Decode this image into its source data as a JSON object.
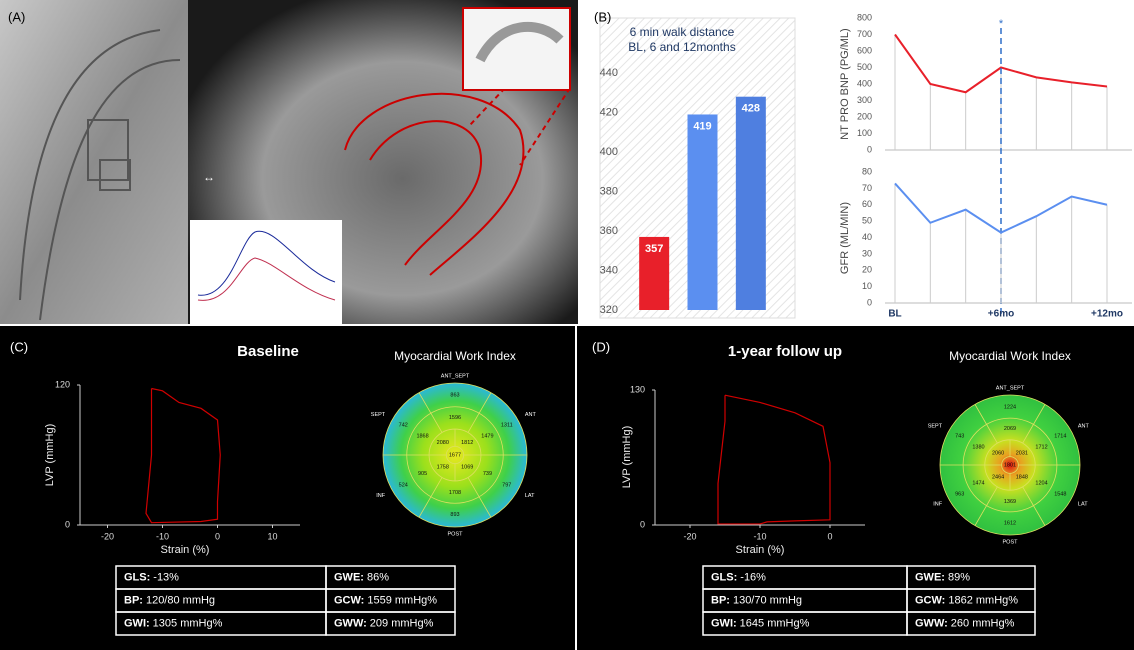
{
  "panels": {
    "a": "(A)",
    "b": "(B)",
    "c": "(C)",
    "d": "(D)"
  },
  "chart_data": [
    {
      "type": "bar",
      "title": "6 min walk distance",
      "subtitle": "BL, 6 and 12months",
      "categories": [
        null,
        null,
        null
      ],
      "values": [
        357,
        419,
        428
      ],
      "colors": [
        "#e8202a",
        "#5b8ff0",
        "#4f7fe0"
      ],
      "ylim": [
        320,
        440
      ],
      "yticks": [
        320,
        340,
        360,
        380,
        400,
        420,
        440
      ]
    },
    {
      "type": "line",
      "y_label": "NT PRO BNP (PG/ML)",
      "annotation": "*",
      "categories": [
        null,
        null,
        null,
        null,
        null,
        null,
        null
      ],
      "values": [
        700,
        400,
        350,
        500,
        440,
        410,
        385
      ],
      "color": "#e8202a",
      "ylim": [
        0,
        800
      ],
      "yticks": [
        0,
        100,
        200,
        300,
        400,
        500,
        600,
        700,
        800
      ]
    },
    {
      "type": "line",
      "y_label": "GFR (ML/MIN)",
      "categories": [
        "BL",
        null,
        null,
        "+6mo",
        null,
        null,
        "+12mo"
      ],
      "values": [
        73,
        49,
        57,
        43,
        53,
        65,
        60
      ],
      "color": "#5b8ff0",
      "ylim": [
        0,
        80
      ],
      "yticks": [
        0,
        10,
        20,
        30,
        40,
        50,
        60,
        70,
        80
      ]
    },
    {
      "type": "loop",
      "title": "Baseline",
      "x_label": "Strain (%)",
      "y_label": "LVP (mmHg)",
      "x": [
        -12,
        -10,
        -7,
        -3,
        0,
        0.5,
        0,
        0,
        -3,
        -12,
        -13,
        -12,
        -12,
        -12
      ],
      "values": [
        117,
        115,
        105,
        100,
        90,
        60,
        20,
        5,
        3,
        2,
        10,
        60,
        110,
        117
      ],
      "color": "#d00000",
      "xlim": [
        -25,
        15
      ],
      "xticks": [
        -20,
        -10,
        0,
        10
      ],
      "ylim": [
        0,
        120
      ],
      "yticks": [
        0,
        120
      ]
    },
    {
      "type": "loop",
      "title": "1-year follow up",
      "x_label": "Strain (%)",
      "y_label": "LVP (mmHg)",
      "x": [
        -15,
        -10,
        -5,
        -1,
        0,
        0,
        0,
        -5,
        -9,
        -10,
        -16,
        -16,
        -15,
        -15
      ],
      "values": [
        125,
        118,
        108,
        95,
        60,
        10,
        5,
        4,
        3,
        1,
        1,
        40,
        100,
        125
      ],
      "color": "#d00000",
      "xlim": [
        -25,
        5
      ],
      "xticks": [
        -20,
        -10,
        0
      ],
      "ylim": [
        0,
        130
      ],
      "yticks": [
        0,
        130
      ]
    }
  ],
  "baseline": {
    "title": "Myocardial Work Index",
    "bullseye": {
      "labels": [
        "ANT_SEPT",
        "ANT",
        "LAT",
        "POST",
        "INF",
        "SEPT"
      ],
      "basal": [
        863,
        1311,
        797,
        893,
        524,
        742
      ],
      "mid": [
        1596,
        1479,
        739,
        1708,
        905,
        1868
      ],
      "apical": [
        2080,
        1812,
        1069,
        1758
      ],
      "apex": 1677
    },
    "table": {
      "rows": [
        [
          {
            "label": "GLS:",
            "value": "-13%"
          },
          {
            "label": "GWE:",
            "value": "86%"
          }
        ],
        [
          {
            "label": "BP:",
            "value": "120/80 mmHg"
          },
          {
            "label": "GCW:",
            "value": "1559 mmHg%"
          }
        ],
        [
          {
            "label": "GWI:",
            "value": "1305 mmHg%"
          },
          {
            "label": "GWW:",
            "value": "209 mmHg%"
          }
        ]
      ]
    }
  },
  "followup": {
    "title": "Myocardial Work Index",
    "bullseye": {
      "labels": [
        "ANT_SEPT",
        "ANT",
        "LAT",
        "POST",
        "INF",
        "SEPT"
      ],
      "basal": [
        1224,
        1714,
        1548,
        1612,
        963,
        743
      ],
      "mid": [
        2069,
        1712,
        1204,
        1369,
        1474,
        1380
      ],
      "apical": [
        2060,
        2031,
        1848,
        2464
      ],
      "apex": 1801
    },
    "table": {
      "rows": [
        [
          {
            "label": "GLS:",
            "value": "-16%"
          },
          {
            "label": "GWE:",
            "value": "89%"
          }
        ],
        [
          {
            "label": "BP:",
            "value": "130/70 mmHg"
          },
          {
            "label": "GCW:",
            "value": "1862 mmHg%"
          }
        ],
        [
          {
            "label": "GWI:",
            "value": "1645 mmHg%"
          },
          {
            "label": "GWW:",
            "value": "260 mmHg%"
          }
        ]
      ]
    }
  }
}
